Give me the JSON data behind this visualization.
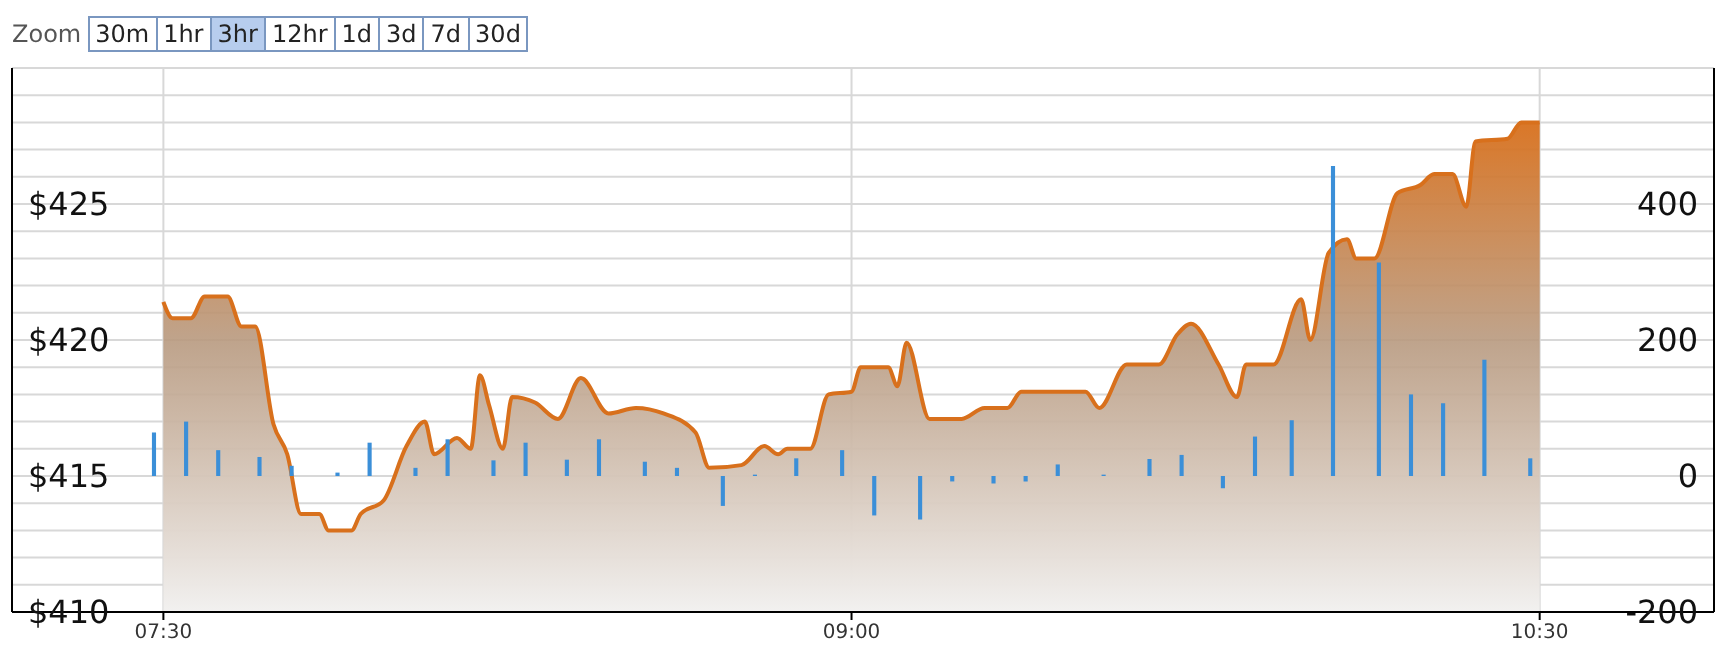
{
  "chart_data": {
    "type": "area",
    "annotations": [
      "Zoom",
      "30m",
      "1hr",
      "3hr",
      "12hr",
      "1d",
      "3d",
      "7d",
      "30d"
    ],
    "xlim": [
      7.17,
      10.88
    ],
    "xticks": [
      {
        "value": 7.5,
        "label": "07:30"
      },
      {
        "value": 9,
        "label": "09:00"
      },
      {
        "value": 10.5,
        "label": "10:30"
      }
    ],
    "ylim": [
      410,
      430
    ],
    "yticks": [
      {
        "value": 410,
        "label": "$410"
      },
      {
        "value": 411,
        "label": null
      },
      {
        "value": 412,
        "label": null
      },
      {
        "value": 413,
        "label": null
      },
      {
        "value": 414,
        "label": null
      },
      {
        "value": 415,
        "label": "$415"
      },
      {
        "value": 416,
        "label": null
      },
      {
        "value": 417,
        "label": null
      },
      {
        "value": 418,
        "label": null
      },
      {
        "value": 419,
        "label": null
      },
      {
        "value": 420,
        "label": "$420"
      },
      {
        "value": 421,
        "label": null
      },
      {
        "value": 422,
        "label": null
      },
      {
        "value": 423,
        "label": null
      },
      {
        "value": 424,
        "label": null
      },
      {
        "value": 425,
        "label": "$425"
      },
      {
        "value": 426,
        "label": null
      },
      {
        "value": 427,
        "label": null
      },
      {
        "value": 428,
        "label": null
      },
      {
        "value": 429,
        "label": null
      },
      {
        "value": 430,
        "label": null
      }
    ],
    "y2lim": [
      -200,
      600
    ],
    "y2ticks": [
      -200,
      0,
      200,
      400
    ],
    "grid": true,
    "series": [
      {
        "color": "#d8701c",
        "x": [
          7.5,
          7.52,
          7.56,
          7.59,
          7.64,
          7.67,
          7.7,
          7.74,
          7.77,
          7.8,
          7.84,
          7.86,
          7.91,
          7.93,
          7.98,
          8.03,
          8.07,
          8.09,
          8.14,
          8.17,
          8.19,
          8.21,
          8.24,
          8.26,
          8.31,
          8.36,
          8.41,
          8.47,
          8.53,
          8.59,
          8.66,
          8.69,
          8.76,
          8.81,
          8.84,
          8.86,
          8.91,
          8.95,
          9.0,
          9.02,
          9.08,
          9.1,
          9.12,
          9.17,
          9.24,
          9.29,
          9.34,
          9.37,
          9.51,
          9.54,
          9.6,
          9.67,
          9.71,
          9.74,
          9.8,
          9.84,
          9.86,
          9.92,
          9.98,
          10.0,
          10.04,
          10.08,
          10.1,
          10.14,
          10.19,
          10.24,
          10.27,
          10.31,
          10.34,
          10.36,
          10.43,
          10.46,
          10.5
        ],
        "values": [
          421.4,
          420.8,
          420.8,
          421.6,
          421.6,
          420.5,
          420.5,
          416.9,
          415.8,
          413.6,
          413.6,
          413.0,
          413.0,
          413.6,
          414.1,
          416.1,
          417.0,
          415.8,
          416.4,
          416.0,
          418.7,
          417.6,
          416.0,
          417.9,
          417.7,
          417.1,
          418.6,
          417.3,
          417.5,
          417.3,
          416.6,
          415.3,
          415.4,
          416.1,
          415.8,
          416.0,
          416.0,
          418.0,
          418.1,
          419.0,
          419.0,
          418.3,
          419.9,
          417.1,
          417.1,
          417.5,
          417.5,
          418.1,
          418.1,
          417.5,
          419.1,
          419.1,
          420.2,
          420.6,
          419.1,
          417.9,
          419.1,
          419.1,
          421.5,
          420.0,
          423.2,
          423.7,
          423.0,
          423.0,
          425.4,
          425.7,
          426.1,
          426.1,
          424.9,
          427.3,
          427.4,
          428.0,
          428.0
        ]
      },
      {
        "type": "bar",
        "axis": "y2",
        "color": "#3b8fd8",
        "x": [
          7.48,
          7.55,
          7.62,
          7.71,
          7.78,
          7.88,
          7.95,
          8.05,
          8.12,
          8.22,
          8.29,
          8.38,
          8.45,
          8.55,
          8.62,
          8.72,
          8.79,
          8.88,
          8.98,
          9.05,
          9.15,
          9.22,
          9.31,
          9.38,
          9.45,
          9.55,
          9.65,
          9.72,
          9.81,
          9.88,
          9.96,
          10.05,
          10.15,
          10.22,
          10.29,
          10.38,
          10.48
        ],
        "values": [
          64,
          80,
          38,
          28,
          15,
          5,
          49,
          12,
          54,
          23,
          49,
          24,
          54,
          21,
          12,
          -44,
          2,
          26,
          38,
          -58,
          -64,
          -8,
          -11,
          -8,
          17,
          2,
          25,
          31,
          -18,
          58,
          82,
          456,
          314,
          120,
          107,
          171,
          26
        ]
      }
    ]
  }
}
